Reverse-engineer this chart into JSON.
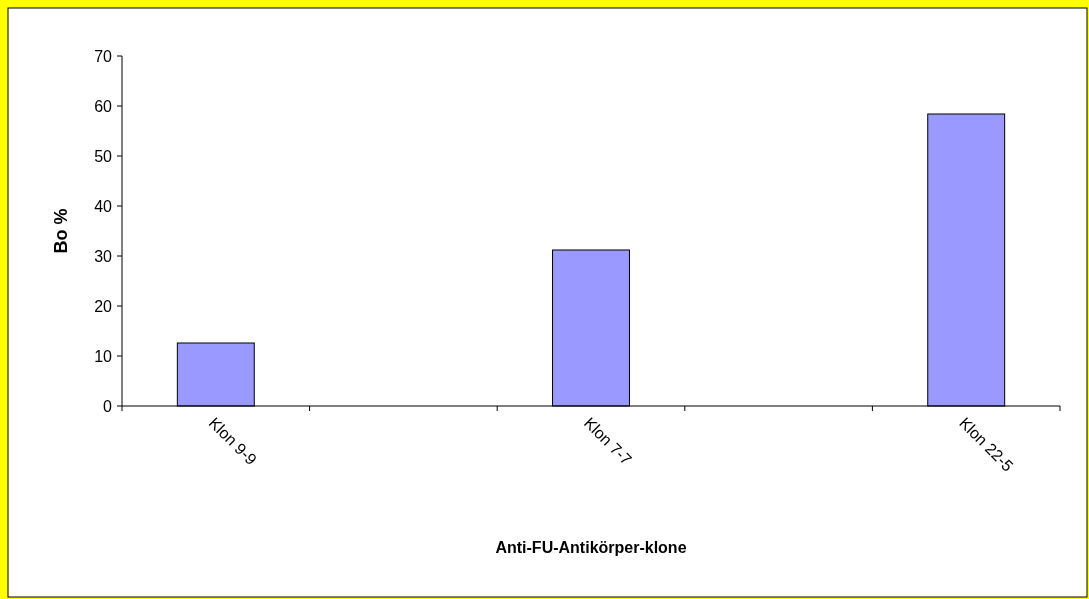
{
  "chart_data": {
    "type": "bar",
    "xlabel": "Anti-FU-Antikörper-klone",
    "ylabel": "Bo %",
    "categories": [
      "Klon 9-9",
      null,
      "Klon 7-7",
      null,
      "Klon 22-5"
    ],
    "values": [
      12.6,
      null,
      31.2,
      null,
      58.4
    ],
    "color": "#9999ff",
    "ylim": [
      0,
      70
    ],
    "yticks": [
      0,
      10,
      20,
      30,
      40,
      50,
      60,
      70
    ],
    "grid": false
  }
}
